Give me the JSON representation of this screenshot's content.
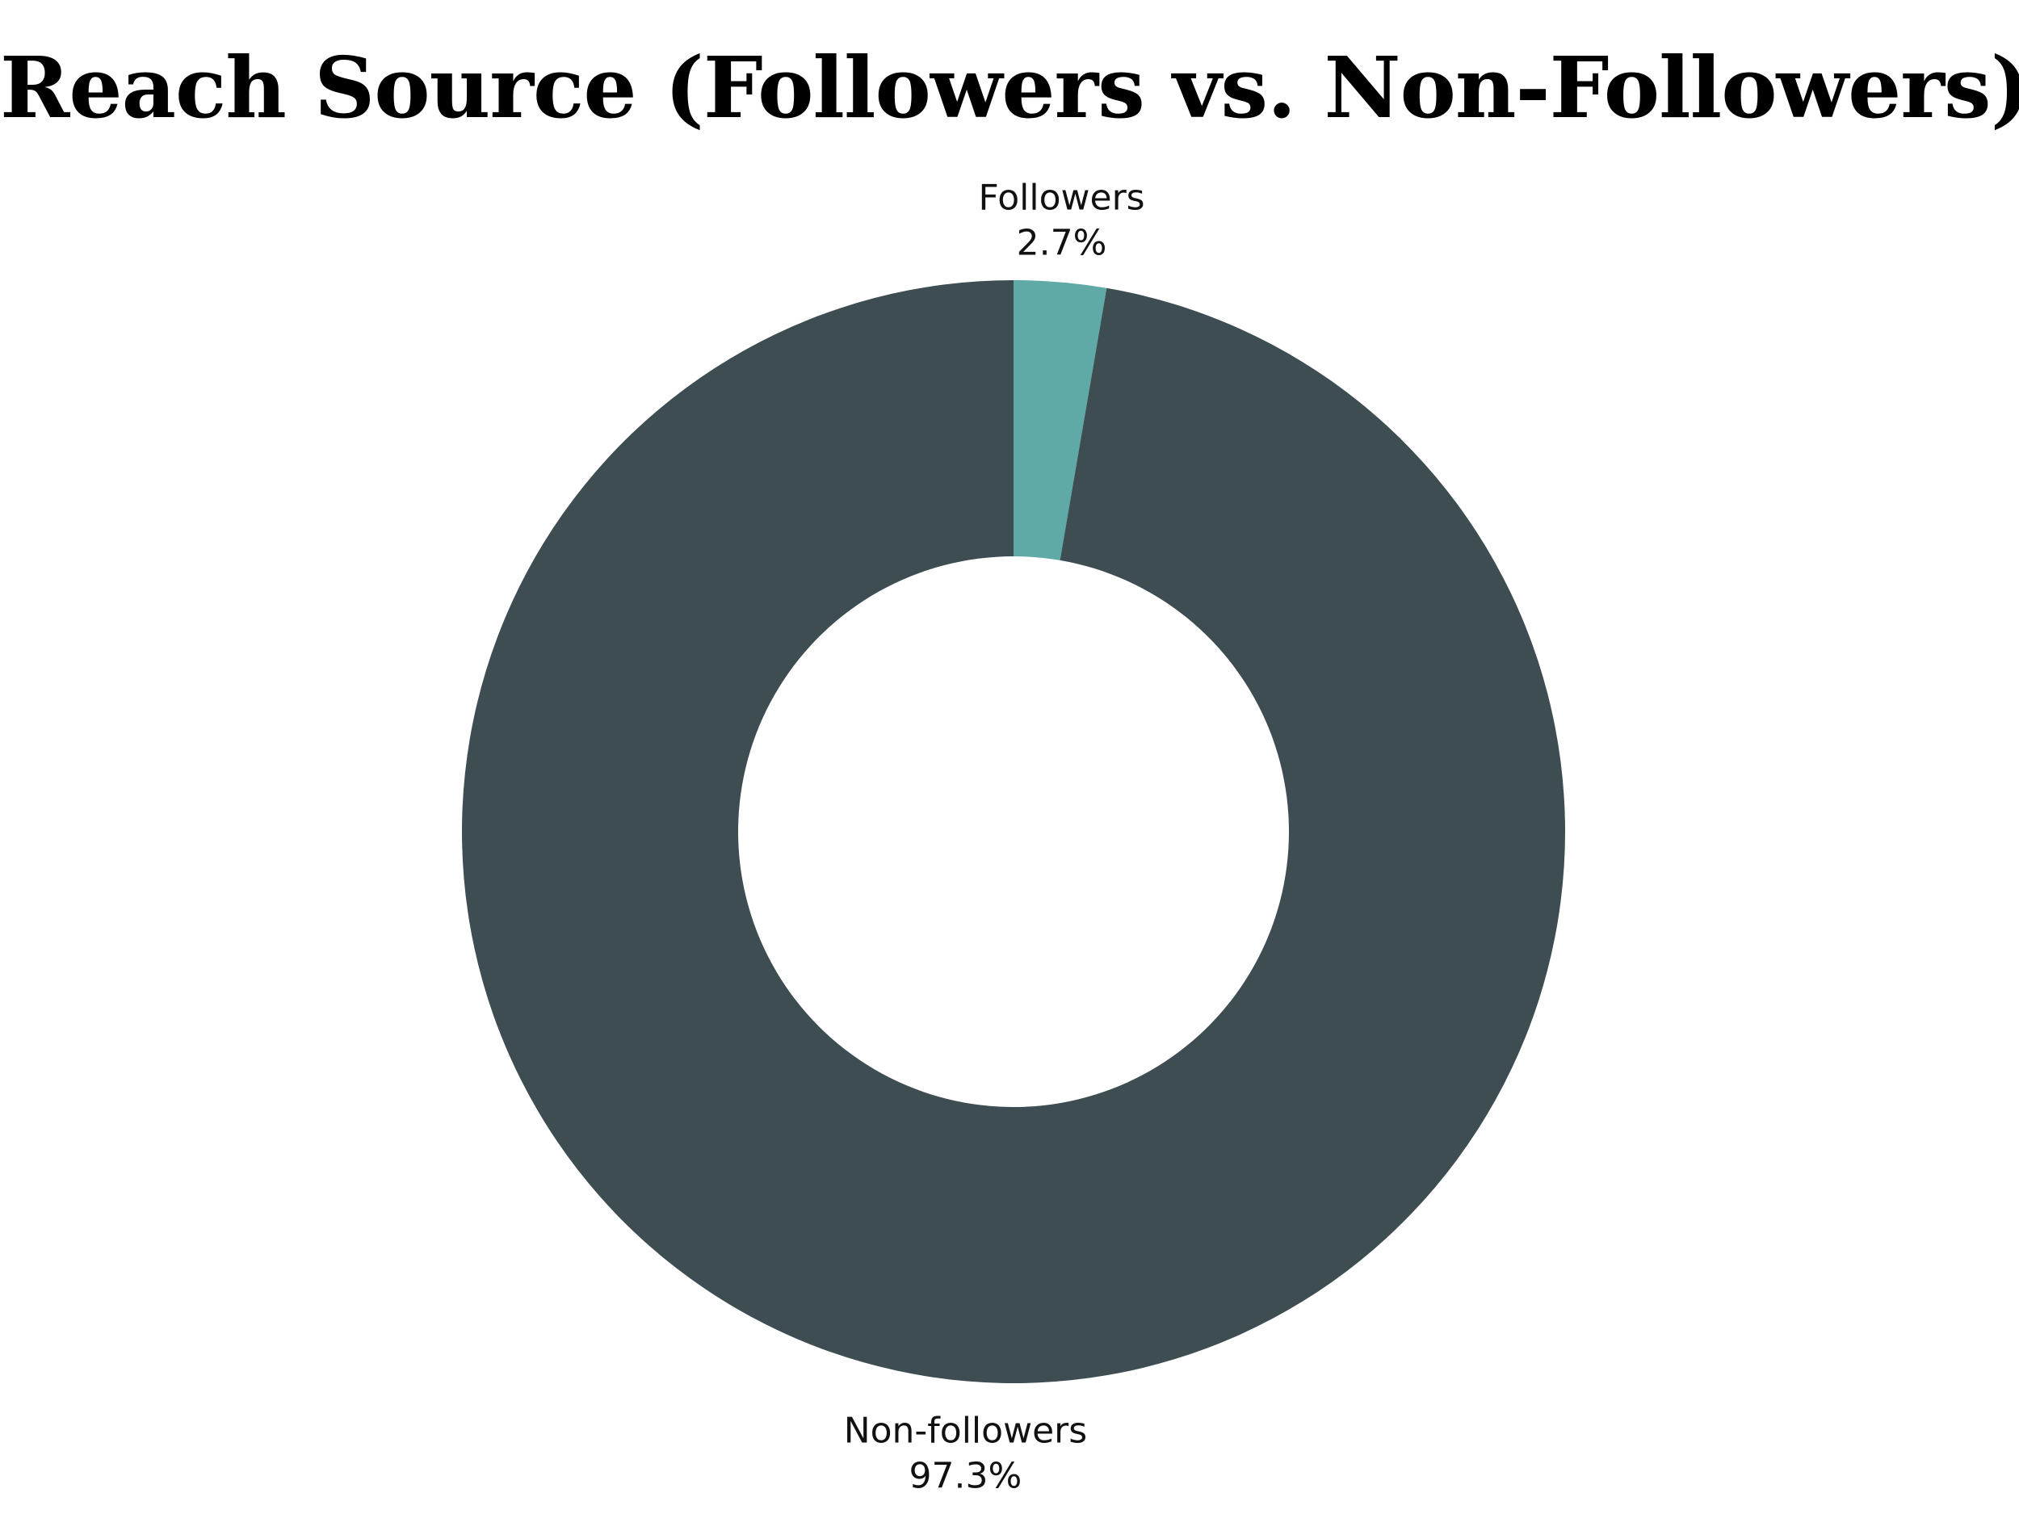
{
  "chart_data": {
    "type": "pie",
    "variant": "donut",
    "title": "Reach Source (Followers vs. Non-Followers)",
    "slices": [
      {
        "label": "Followers",
        "value": 2.7,
        "value_label": "2.7%",
        "color": "#5fa9a7"
      },
      {
        "label": "Non-followers",
        "value": 97.3,
        "value_label": "97.3%",
        "color": "#3d4d52"
      }
    ],
    "start": "top, clockwise",
    "legend": "none",
    "background": "#ffffff"
  }
}
